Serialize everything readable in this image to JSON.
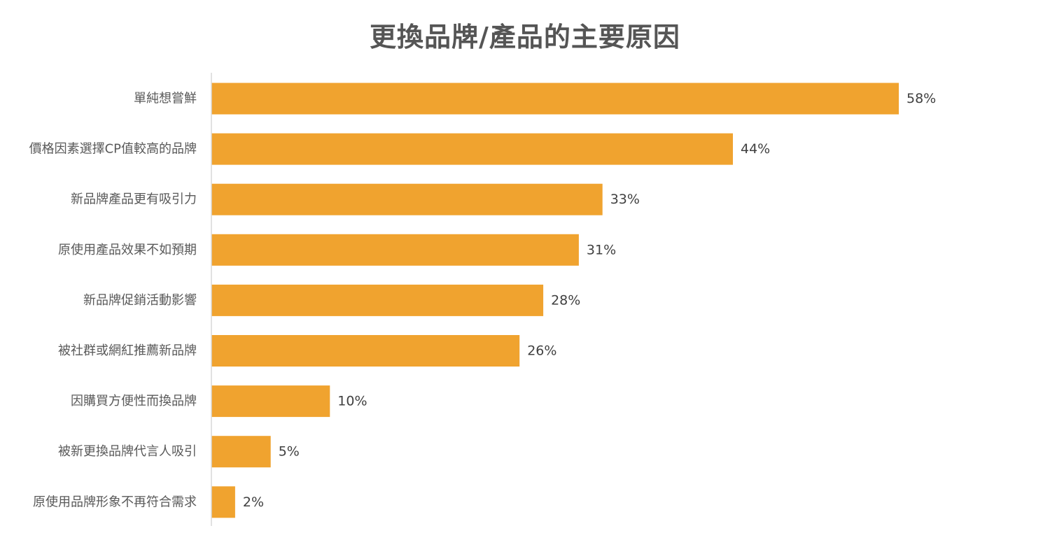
{
  "chart_data": {
    "type": "bar",
    "orientation": "horizontal",
    "title": "更換品牌/產品的主要原因",
    "categories": [
      "單純想嘗鮮",
      "價格因素選擇CP值較高的品牌",
      "新品牌產品更有吸引力",
      "原使用產品效果不如預期",
      "新品牌促銷活動影響",
      "被社群或網紅推薦新品牌",
      "因購買方便性而換品牌",
      "被新更換品牌代言人吸引",
      "原使用品牌形象不再符合需求"
    ],
    "values": [
      58,
      44,
      33,
      31,
      28,
      26,
      10,
      5,
      2
    ],
    "value_labels": [
      "58%",
      "44%",
      "33%",
      "31%",
      "28%",
      "26%",
      "10%",
      "5%",
      "2%"
    ],
    "unit": "%",
    "xlim": [
      0,
      60
    ],
    "grid": false,
    "legend": "none",
    "colors": {
      "bar": "#F0A32F",
      "axis": "#D9D9D9",
      "title": "#555555"
    }
  }
}
